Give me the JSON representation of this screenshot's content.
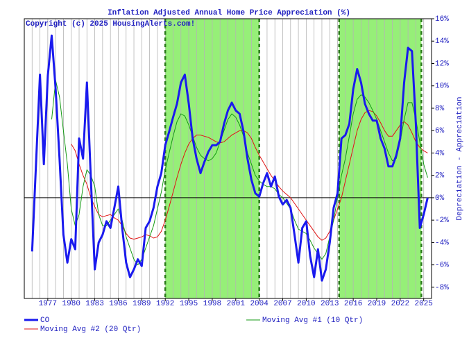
{
  "chart_data": {
    "type": "line",
    "title": "Inflation Adjusted Annual Home Price Appreciation (%)",
    "annotation": "Copyright (c) 2025 HousingAlerts.com!",
    "y_label": "Depreciation - Appreciation",
    "xlim": [
      1974,
      2026
    ],
    "xticks": [
      1977,
      1980,
      1983,
      1986,
      1989,
      1992,
      1995,
      1998,
      2001,
      2004,
      2007,
      2010,
      2013,
      2016,
      2019,
      2022,
      2025
    ],
    "xgrid_step": 1,
    "ylim": [
      -9,
      16
    ],
    "yticks": [
      {
        "value": -8,
        "label": "-8%"
      },
      {
        "value": -6,
        "label": "-6%"
      },
      {
        "value": -4,
        "label": "-4%"
      },
      {
        "value": -2,
        "label": "-2%"
      },
      {
        "value": 0,
        "label": "0%"
      },
      {
        "value": 2,
        "label": "2%"
      },
      {
        "value": 4,
        "label": "4%"
      },
      {
        "value": 6,
        "label": "6%"
      },
      {
        "value": 8,
        "label": "8%"
      },
      {
        "value": 10,
        "label": "10%"
      },
      {
        "value": 12,
        "label": "12%"
      },
      {
        "value": 14,
        "label": "14%"
      },
      {
        "value": 16,
        "label": "16%"
      }
    ],
    "grid": true,
    "shaded_regions": [
      [
        1992,
        2004
      ],
      [
        2014.2,
        2024.7
      ]
    ],
    "shade_color": "#96ef78",
    "x": [
      1975,
      1975.5,
      1976,
      1976.5,
      1977,
      1977.5,
      1978,
      1978.5,
      1979,
      1979.5,
      1980,
      1980.5,
      1981,
      1981.5,
      1982,
      1982.5,
      1983,
      1983.5,
      1984,
      1984.5,
      1985,
      1985.5,
      1986,
      1986.5,
      1987,
      1987.5,
      1988,
      1988.5,
      1989,
      1989.5,
      1990,
      1990.5,
      1991,
      1991.5,
      1992,
      1992.5,
      1993,
      1993.5,
      1994,
      1994.5,
      1995,
      1995.5,
      1996,
      1996.5,
      1997,
      1997.5,
      1998,
      1998.5,
      1999,
      1999.5,
      2000,
      2000.5,
      2001,
      2001.5,
      2002,
      2002.5,
      2003,
      2003.5,
      2004,
      2004.5,
      2005,
      2005.5,
      2006,
      2006.5,
      2007,
      2007.5,
      2008,
      2008.5,
      2009,
      2009.5,
      2010,
      2010.5,
      2011,
      2011.5,
      2012,
      2012.5,
      2013,
      2013.5,
      2014,
      2014.5,
      2015,
      2015.5,
      2016,
      2016.5,
      2017,
      2017.5,
      2018,
      2018.5,
      2019,
      2019.5,
      2020,
      2020.5,
      2021,
      2021.5,
      2022,
      2022.5,
      2023,
      2023.5,
      2024,
      2024.5,
      2025,
      2025.5
    ],
    "series": [
      {
        "name": "CO",
        "color": "#1a1aee",
        "width": 3,
        "values": [
          -4.8,
          3.0,
          11,
          3,
          10.9,
          14.5,
          9.7,
          3.5,
          -3.3,
          -5.8,
          -3.7,
          -4.6,
          5.3,
          3.5,
          10.3,
          1.6,
          -6.4,
          -4,
          -3.3,
          -2.1,
          -2.7,
          -0.9,
          1,
          -2.7,
          -5.8,
          -7.1,
          -6.4,
          -5.5,
          -6.1,
          -2.7,
          -2.1,
          -0.9,
          1,
          2.2,
          4.7,
          5.9,
          7.2,
          8.4,
          10.3,
          11,
          8.4,
          5.3,
          3.5,
          2.2,
          3.2,
          4.1,
          4.7,
          4.7,
          5,
          6.6,
          7.8,
          8.5,
          7.8,
          7.5,
          5.9,
          3.5,
          1.6,
          0.4,
          0.1,
          1.3,
          2.2,
          1,
          1.9,
          0.1,
          -0.6,
          -0.2,
          -0.9,
          -3.3,
          -5.8,
          -2.7,
          -2.1,
          -5.2,
          -7.1,
          -4.6,
          -7.4,
          -6.4,
          -4,
          -0.9,
          0.4,
          5.3,
          5.6,
          6.6,
          9.7,
          11.5,
          10.3,
          8.4,
          7.5,
          6.9,
          6.9,
          5.3,
          4.4,
          2.8,
          2.8,
          3.8,
          5.3,
          10.3,
          13.4,
          13.1,
          6.6,
          -2.7,
          -1.5,
          0
        ]
      },
      {
        "name": "Moving Avg #1 (10 Qtr)",
        "color": "#139a13",
        "width": 1,
        "values": [
          null,
          null,
          null,
          null,
          null,
          7,
          10.5,
          9,
          6,
          3,
          -1,
          -2.5,
          -1.5,
          1,
          2.5,
          2,
          1,
          -1.5,
          -2.5,
          -2.5,
          -2,
          -1.5,
          -1,
          -2,
          -3.5,
          -4.5,
          -5.5,
          -6,
          -5.5,
          -4.5,
          -3.5,
          -2.5,
          -1,
          0.5,
          2.5,
          4,
          5.5,
          6.8,
          7.5,
          7.3,
          6.5,
          5.5,
          4.5,
          3.8,
          3.5,
          3.3,
          3.5,
          4,
          5,
          6,
          7,
          7.5,
          7.2,
          6.5,
          5.5,
          4,
          3,
          2,
          1.5,
          1.2,
          1,
          1,
          0.8,
          0.3,
          0,
          -0.5,
          -1,
          -2,
          -2.8,
          -3,
          -3.2,
          -3.8,
          -4.5,
          -5,
          -5.5,
          -5,
          -3.5,
          -2,
          0,
          2,
          3.5,
          5.5,
          7.5,
          8.8,
          9.2,
          9,
          8.5,
          7.8,
          7,
          6,
          5,
          4,
          3.3,
          3.5,
          5,
          7,
          8.5,
          8.5,
          7,
          5,
          3,
          1.8
        ]
      },
      {
        "name": "Moving Avg #2 (20 Qtr)",
        "color": "#e01414",
        "width": 1,
        "values": [
          null,
          null,
          null,
          null,
          null,
          null,
          null,
          null,
          null,
          null,
          4.8,
          4.2,
          3,
          2,
          1.2,
          0,
          -0.8,
          -1.5,
          -1.7,
          -1.6,
          -1.5,
          -1.8,
          -2,
          -2.5,
          -3.2,
          -3.6,
          -3.7,
          -3.6,
          -3.5,
          -3.3,
          -3.4,
          -3.6,
          -3.5,
          -3,
          -2,
          -0.8,
          0.5,
          1.8,
          3,
          4,
          4.8,
          5.3,
          5.6,
          5.6,
          5.5,
          5.4,
          5.2,
          5,
          4.9,
          5,
          5.3,
          5.6,
          5.8,
          6,
          6,
          5.8,
          5.3,
          4.5,
          3.8,
          3.2,
          2.6,
          2,
          1.5,
          1,
          0.6,
          0.3,
          0,
          -0.5,
          -1,
          -1.5,
          -2,
          -2.5,
          -3,
          -3.5,
          -3.8,
          -3.6,
          -3,
          -2,
          -1,
          0,
          1.5,
          3,
          4.5,
          6,
          7,
          7.6,
          7.8,
          7.7,
          7.3,
          6.7,
          6,
          5.5,
          5.5,
          6,
          6.5,
          6.8,
          6.5,
          5.8,
          5,
          4.5,
          4.2,
          4
        ]
      }
    ]
  }
}
